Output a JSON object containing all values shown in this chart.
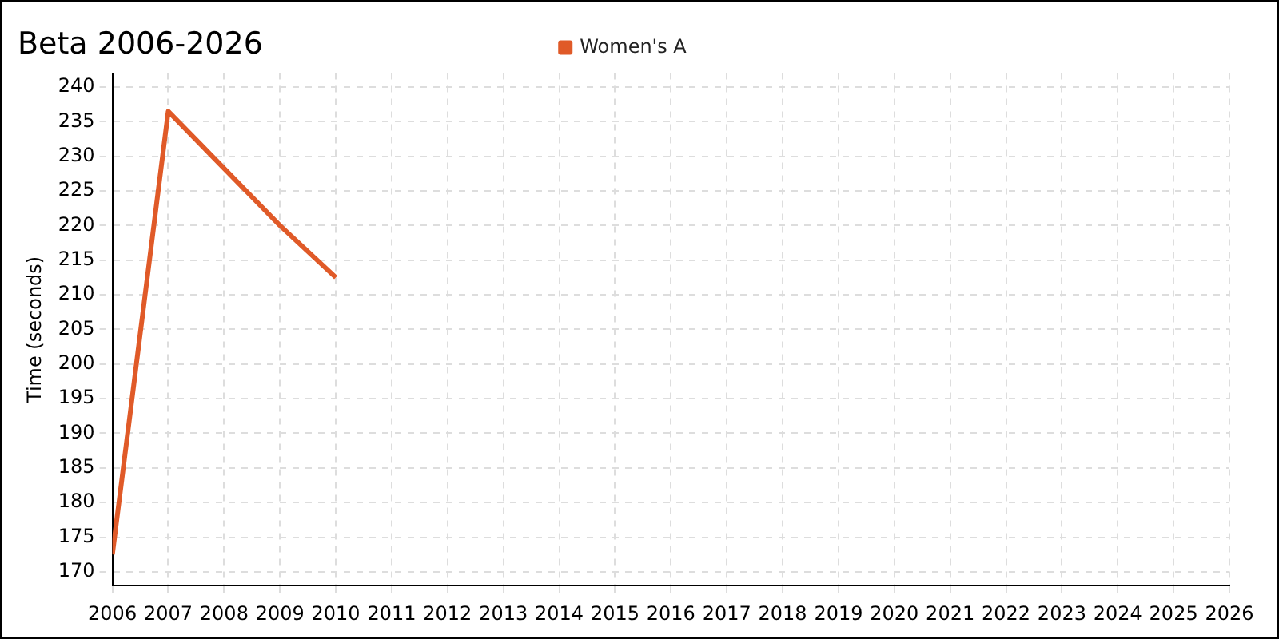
{
  "chart_data": {
    "type": "line",
    "title": "Beta 2006-2026",
    "ylabel": "Time (seconds)",
    "x": [
      2006,
      2007,
      2008,
      2009,
      2010
    ],
    "series": [
      {
        "name": "Women's A",
        "color": "#e05a28",
        "values": [
          172.5,
          236.5,
          null,
          220,
          212.5
        ]
      }
    ],
    "xlim": [
      2006,
      2026
    ],
    "xticks": [
      2006,
      2007,
      2008,
      2009,
      2010,
      2011,
      2012,
      2013,
      2014,
      2015,
      2016,
      2017,
      2018,
      2019,
      2020,
      2021,
      2022,
      2023,
      2024,
      2025,
      2026
    ],
    "ylim": [
      168,
      242
    ],
    "yticks": [
      170,
      175,
      180,
      185,
      190,
      195,
      200,
      205,
      210,
      215,
      220,
      225,
      230,
      235,
      240
    ],
    "grid": true,
    "legend": "top",
    "marker": "none"
  }
}
